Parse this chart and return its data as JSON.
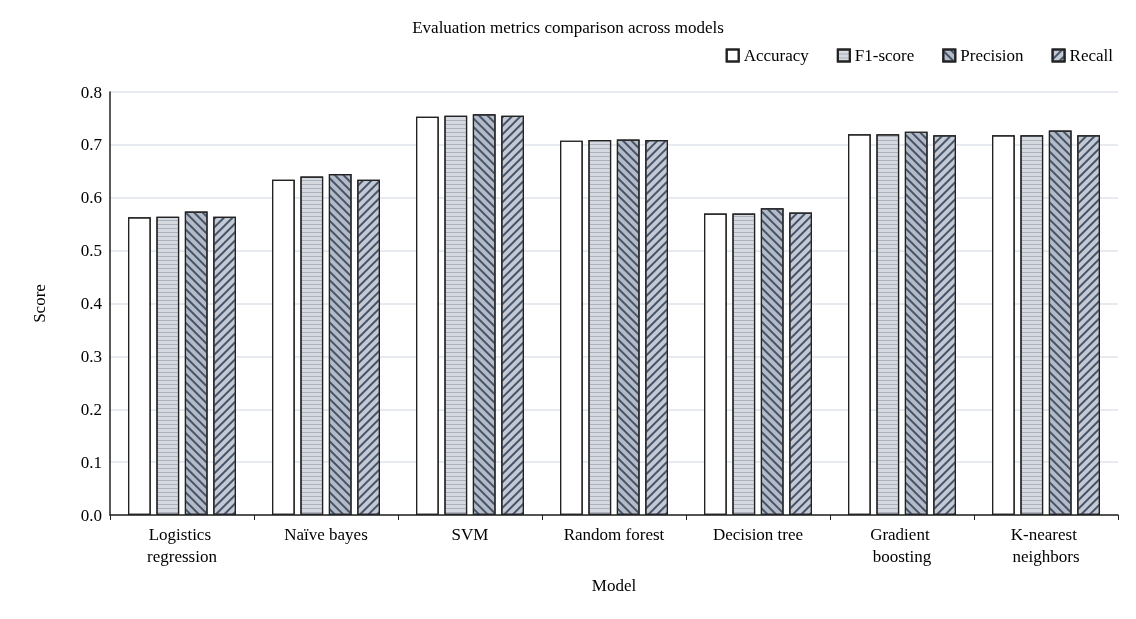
{
  "chart_data": {
    "type": "bar",
    "title": "Evaluation metrics comparison across models",
    "xlabel": "Model",
    "ylabel": "Score",
    "categories": [
      "Logistics regression",
      "Naïve bayes",
      "SVM",
      "Random forest",
      "Decision tree",
      "Gradient boosting",
      "K-nearest neighbors"
    ],
    "series": [
      {
        "name": "Accuracy",
        "color": "#ffffff",
        "values": [
          0.563,
          0.634,
          0.753,
          0.708,
          0.57,
          0.72,
          0.718
        ]
      },
      {
        "name": "F1-score",
        "color": "#d5d9e0",
        "values": [
          0.564,
          0.64,
          0.755,
          0.709,
          0.57,
          0.72,
          0.718
        ]
      },
      {
        "name": "Precision",
        "color": "#b4bac6",
        "values": [
          0.574,
          0.645,
          0.758,
          0.71,
          0.58,
          0.725,
          0.727
        ]
      },
      {
        "name": "Recall",
        "color": "#c4c9d3",
        "values": [
          0.564,
          0.634,
          0.755,
          0.709,
          0.572,
          0.718,
          0.718
        ]
      }
    ],
    "ylim": [
      0,
      0.8
    ],
    "yticks": [
      {
        "value": 0,
        "label": "0.0"
      },
      0.1,
      0.2,
      0.3,
      0.4,
      0.5,
      0.6,
      0.7,
      0.8
    ],
    "grid": "y",
    "legend": "top right"
  }
}
